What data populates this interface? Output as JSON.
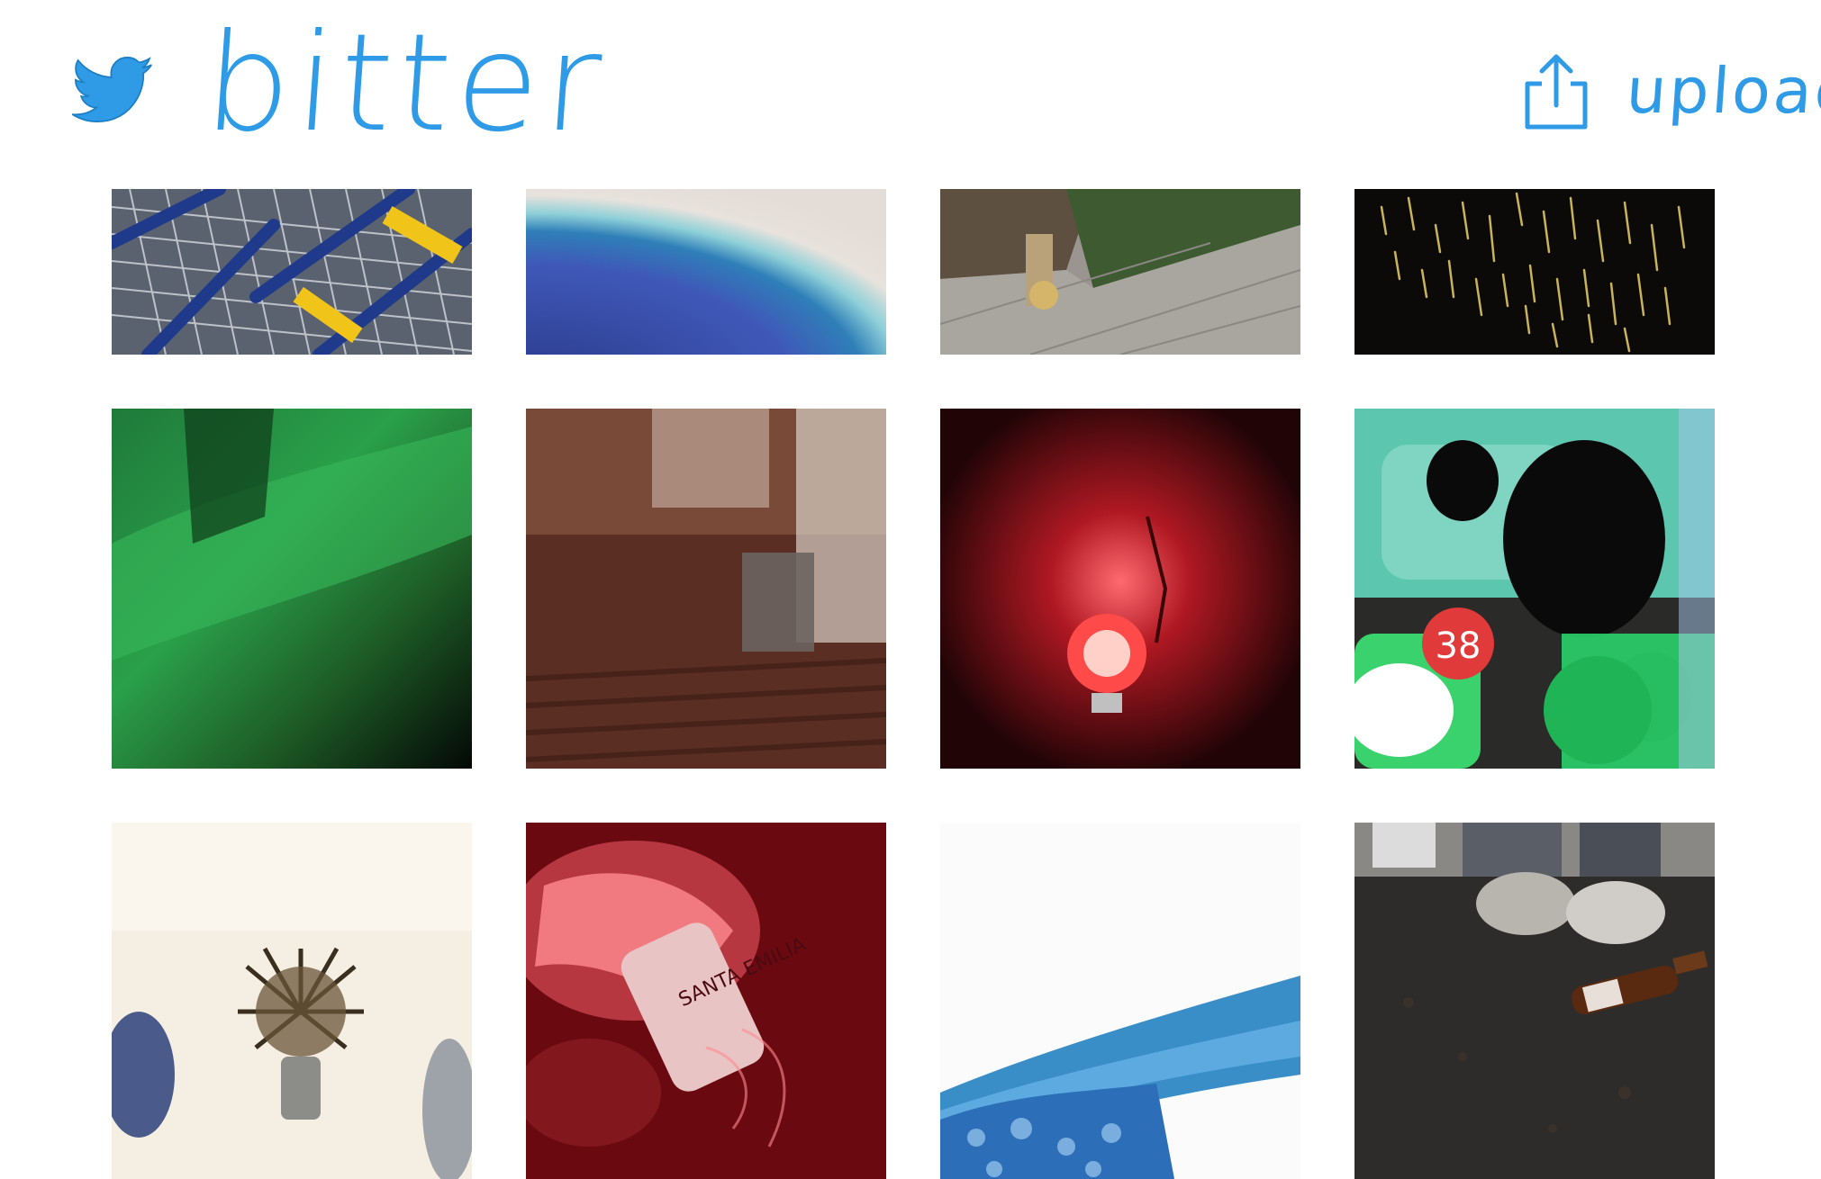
{
  "header": {
    "brand": "bitter",
    "upload_label": "upload"
  },
  "icons": {
    "logo": "bird-icon",
    "upload": "upload-icon"
  },
  "colors": {
    "accent": "#2f9be6",
    "background": "#ffffff"
  },
  "photos": [
    {
      "id": "photo-1",
      "subject": "shopping carts"
    },
    {
      "id": "photo-2",
      "subject": "blue gradient"
    },
    {
      "id": "photo-3",
      "subject": "floor and skateboard"
    },
    {
      "id": "photo-4",
      "subject": "sparks at night"
    },
    {
      "id": "photo-5",
      "subject": "green blur"
    },
    {
      "id": "photo-6",
      "subject": "blurred room"
    },
    {
      "id": "photo-7",
      "subject": "red lamp"
    },
    {
      "id": "photo-8",
      "subject": "cracked screen",
      "badge": "38"
    },
    {
      "id": "photo-9",
      "subject": "shaving brush"
    },
    {
      "id": "photo-10",
      "subject": "bottle in red light",
      "bottle_label": "SANTA EMILIA"
    },
    {
      "id": "photo-11",
      "subject": "blue inflatable"
    },
    {
      "id": "photo-12",
      "subject": "bottle on pavement"
    }
  ]
}
